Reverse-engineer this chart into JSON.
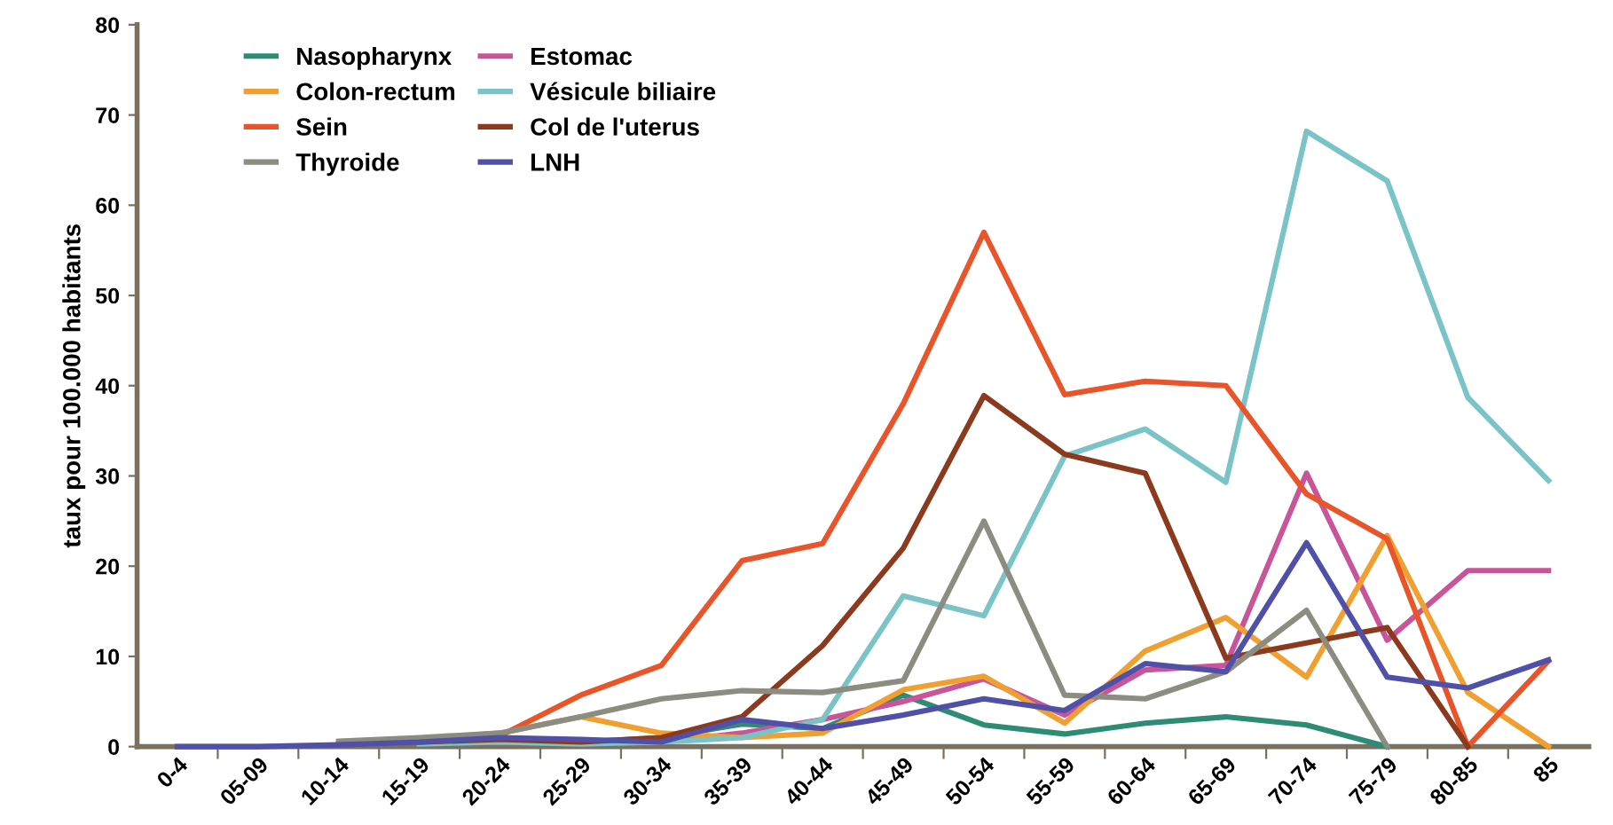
{
  "chart_data": {
    "type": "line",
    "ylabel": "taux pour 100.000 habitants",
    "categories": [
      "0-4",
      "05-09",
      "10-14",
      "15-19",
      "20-24",
      "25-29",
      "30-34",
      "35-39",
      "40-44",
      "45-49",
      "50-54",
      "55-59",
      "60-64",
      "65-69",
      "70-74",
      "75-79",
      "80-85",
      "85"
    ],
    "series": [
      {
        "name": "Nasopharynx",
        "color": "#2e8b74",
        "values": [
          null,
          null,
          null,
          0.8,
          1,
          0.5,
          1,
          2.5,
          2,
          5.7,
          2.4,
          1.4,
          2.6,
          3.3,
          2.4,
          0,
          null,
          null
        ]
      },
      {
        "name": "Estomac",
        "color": "#c8559a",
        "values": [
          null,
          null,
          null,
          0.5,
          0.8,
          0.5,
          0.5,
          1.5,
          3,
          5,
          7.5,
          3.5,
          8.5,
          9,
          30.3,
          11.8,
          19.5,
          19.5
        ]
      },
      {
        "name": "Colon-rectum",
        "color": "#f0a030",
        "values": [
          null,
          null,
          null,
          0.8,
          1.5,
          3.3,
          1.5,
          1,
          1.5,
          6.3,
          7.8,
          2.6,
          10.6,
          14.3,
          7.7,
          23.4,
          6,
          0
        ]
      },
      {
        "name": "Vésicule biliaire",
        "color": "#7ac4c8",
        "values": [
          null,
          null,
          null,
          0.3,
          0.5,
          0.3,
          0.5,
          1,
          3,
          16.7,
          14.5,
          32.2,
          35.2,
          29.3,
          68.2,
          62.7,
          38.7,
          29.5
        ]
      },
      {
        "name": "Sein",
        "color": "#e8552a",
        "values": [
          null,
          null,
          0.4,
          0.8,
          1.2,
          5.7,
          9,
          20.6,
          22.5,
          38,
          57,
          39,
          40.5,
          40,
          28,
          23,
          0,
          9.5
        ]
      },
      {
        "name": "Col de l'uterus",
        "color": "#8b3a1e",
        "values": [
          null,
          null,
          null,
          0.5,
          0.8,
          0.5,
          1,
          3.3,
          11.2,
          22,
          38.9,
          32.4,
          30.3,
          9.8,
          11.5,
          13.2,
          0,
          null
        ]
      },
      {
        "name": "Thyroide",
        "color": "#8c8c80",
        "values": [
          null,
          null,
          0.6,
          1,
          1.5,
          3.3,
          5.3,
          6.2,
          6,
          7.3,
          25,
          5.7,
          5.3,
          8.3,
          15.1,
          0,
          null,
          null
        ]
      },
      {
        "name": "LNH",
        "color": "#5050a8",
        "values": [
          0,
          0,
          0.2,
          0.5,
          1,
          0.8,
          0.5,
          3,
          2,
          3.5,
          5.3,
          4,
          9.2,
          8.3,
          22.6,
          7.7,
          6.5,
          9.6
        ]
      }
    ],
    "ylim": [
      0,
      80
    ],
    "yticks": [
      0,
      10,
      20,
      30,
      40,
      50,
      60,
      70,
      80
    ],
    "grid": false,
    "legend": "top left",
    "marker": "none",
    "line_style": "solid"
  }
}
